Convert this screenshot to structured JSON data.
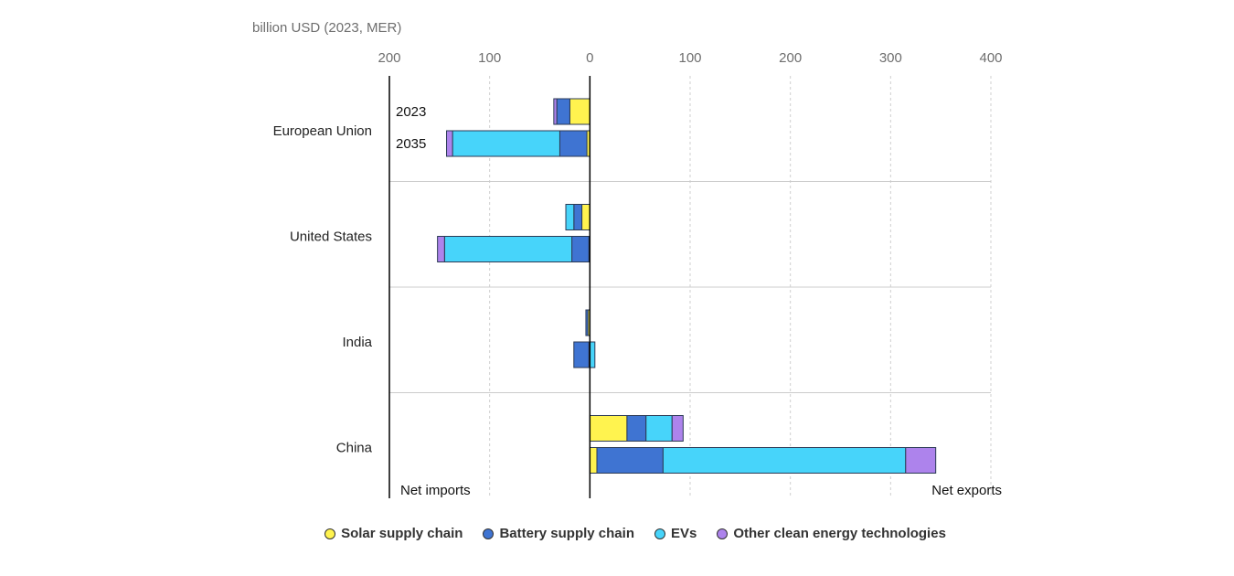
{
  "chart_data": {
    "type": "bar",
    "orientation": "horizontal",
    "stacked": true,
    "ylabel": "billion USD (2023, MER)",
    "xlim": [
      -200,
      400
    ],
    "x_ticks": [
      -200,
      -100,
      0,
      100,
      200,
      300,
      400
    ],
    "x_tick_labels": [
      "200",
      "100",
      "0",
      "100",
      "200",
      "300",
      "400"
    ],
    "categories": [
      "European Union",
      "United States",
      "India",
      "China"
    ],
    "years": [
      "2023",
      "2035"
    ],
    "series": [
      {
        "name": "Solar supply chain",
        "color": "#fff34f",
        "values": {
          "European Union": [
            -20,
            -3
          ],
          "United States": [
            -8,
            -1
          ],
          "India": [
            -2,
            -1
          ],
          "China": [
            37,
            7
          ]
        }
      },
      {
        "name": "Battery supply chain",
        "color": "#3f74d2",
        "values": {
          "European Union": [
            -13,
            -27
          ],
          "United States": [
            -8,
            -17
          ],
          "India": [
            -2,
            -15
          ],
          "China": [
            19,
            66
          ]
        }
      },
      {
        "name": "EVs",
        "color": "#47d4fa",
        "values": {
          "European Union": [
            0,
            -107
          ],
          "United States": [
            -8,
            -127
          ],
          "India": [
            0,
            5
          ],
          "China": [
            26,
            242
          ]
        }
      },
      {
        "name": "Other clean energy technologies",
        "color": "#ad83ec",
        "values": {
          "European Union": [
            -3,
            -6
          ],
          "United States": [
            0,
            -7
          ],
          "India": [
            0,
            0
          ],
          "China": [
            11,
            30
          ]
        }
      }
    ],
    "annotations": {
      "left": "Net imports",
      "right": "Net exports"
    },
    "legend_position": "bottom",
    "grid": "vertical-dashed"
  }
}
